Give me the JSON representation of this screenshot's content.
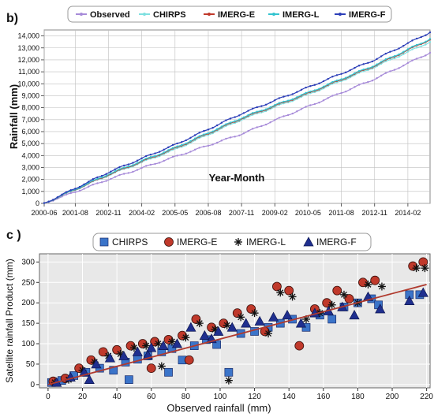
{
  "chart_data": [
    {
      "panel_label": "b)",
      "type": "line",
      "xlabel": "Year-Month",
      "ylabel": "Rainfall (mm)",
      "ylim": [
        0,
        14500
      ],
      "x_tick_labels": [
        "2000-06",
        "2001-08",
        "2002-11",
        "2004-02",
        "2005-05",
        "2006-08",
        "2007-11",
        "2009-02",
        "2010-05",
        "2011-08",
        "2012-11",
        "2014-02"
      ],
      "x_range_months": [
        "2000-06",
        "2014-12"
      ],
      "y_tick_labels": [
        "0",
        "1,000",
        "2,000",
        "3,000",
        "4,000",
        "5,000",
        "6,000",
        "7,000",
        "8,000",
        "9,000",
        "10,000",
        "11,000",
        "12,000",
        "13,000",
        "14,000"
      ],
      "y_ticks": [
        0,
        1000,
        2000,
        3000,
        4000,
        5000,
        6000,
        7000,
        8000,
        9000,
        10000,
        11000,
        12000,
        13000,
        14000
      ],
      "grid": true,
      "legend_position": "top",
      "series": [
        {
          "name": "Observed",
          "color": "#a78bd9",
          "x": [
            "2000-06",
            "2002-11",
            "2005-05",
            "2007-11",
            "2010-05",
            "2012-11",
            "2014-12"
          ],
          "values": [
            0,
            2000,
            3900,
            5800,
            8100,
            10400,
            12600
          ]
        },
        {
          "name": "CHIRPS",
          "color": "#7fe0e0",
          "x": [
            "2000-06",
            "2002-11",
            "2005-05",
            "2007-11",
            "2010-05",
            "2012-11",
            "2014-12"
          ],
          "values": [
            0,
            2350,
            4500,
            7000,
            9100,
            11400,
            13500
          ]
        },
        {
          "name": "IMERG-E",
          "color": "#c0392b",
          "x": [
            "2000-06",
            "2002-11",
            "2005-05",
            "2007-11",
            "2010-05",
            "2012-11",
            "2014-12"
          ],
          "values": [
            0,
            2400,
            4600,
            7100,
            9200,
            11500,
            13700
          ]
        },
        {
          "name": "IMERG-L",
          "color": "#34c4cf",
          "x": [
            "2000-06",
            "2002-11",
            "2005-05",
            "2007-11",
            "2010-05",
            "2012-11",
            "2014-12"
          ],
          "values": [
            0,
            2450,
            4650,
            7150,
            9250,
            11550,
            13750
          ]
        },
        {
          "name": "IMERG-F",
          "color": "#2c3eb8",
          "x": [
            "2000-06",
            "2002-11",
            "2005-05",
            "2007-11",
            "2010-05",
            "2012-11",
            "2014-12"
          ],
          "values": [
            0,
            2600,
            4900,
            7500,
            9700,
            12000,
            14300
          ]
        }
      ]
    },
    {
      "panel_label": "c )",
      "type": "scatter",
      "xlabel": "Observed  rainfall (mm)",
      "ylabel": "Satellite rainfall Product (mm)",
      "xlim": [
        -5,
        222
      ],
      "ylim": [
        -8,
        320
      ],
      "x_ticks": [
        0,
        20,
        40,
        60,
        80,
        100,
        120,
        140,
        160,
        180,
        200,
        220
      ],
      "y_ticks": [
        0,
        50,
        100,
        150,
        200,
        250,
        300
      ],
      "grid": true,
      "legend_position": "top",
      "trendline": {
        "x": [
          0,
          220
        ],
        "y": [
          0,
          245
        ],
        "color": "#b03a2e"
      },
      "series": [
        {
          "name": "CHIRPS",
          "marker": "square",
          "color": "#3b74c9",
          "points": [
            [
              2,
              5
            ],
            [
              8,
              10
            ],
            [
              15,
              22
            ],
            [
              22,
              30
            ],
            [
              30,
              40
            ],
            [
              38,
              35
            ],
            [
              45,
              55
            ],
            [
              52,
              62
            ],
            [
              58,
              70
            ],
            [
              66,
              80
            ],
            [
              72,
              88
            ],
            [
              78,
              60
            ],
            [
              85,
              95
            ],
            [
              92,
              110
            ],
            [
              98,
              98
            ],
            [
              105,
              30
            ],
            [
              112,
              125
            ],
            [
              120,
              130
            ],
            [
              128,
              140
            ],
            [
              135,
              150
            ],
            [
              142,
              160
            ],
            [
              150,
              140
            ],
            [
              158,
              170
            ],
            [
              165,
              160
            ],
            [
              172,
              190
            ],
            [
              180,
              200
            ],
            [
              188,
              210
            ],
            [
              192,
              195
            ],
            [
              210,
              220
            ],
            [
              216,
              220
            ],
            [
              70,
              30
            ],
            [
              47,
              12
            ]
          ]
        },
        {
          "name": "IMERG-E",
          "marker": "circle",
          "color": "#c0392b",
          "points": [
            [
              3,
              8
            ],
            [
              10,
              15
            ],
            [
              18,
              40
            ],
            [
              25,
              60
            ],
            [
              32,
              80
            ],
            [
              40,
              85
            ],
            [
              48,
              95
            ],
            [
              55,
              100
            ],
            [
              62,
              105
            ],
            [
              70,
              110
            ],
            [
              78,
              120
            ],
            [
              86,
              160
            ],
            [
              95,
              140
            ],
            [
              102,
              150
            ],
            [
              110,
              175
            ],
            [
              118,
              185
            ],
            [
              126,
              130
            ],
            [
              133,
              240
            ],
            [
              140,
              230
            ],
            [
              146,
              95
            ],
            [
              155,
              185
            ],
            [
              162,
              200
            ],
            [
              168,
              230
            ],
            [
              175,
              210
            ],
            [
              183,
              250
            ],
            [
              190,
              255
            ],
            [
              212,
              290
            ],
            [
              218,
              300
            ],
            [
              82,
              60
            ],
            [
              60,
              40
            ]
          ]
        },
        {
          "name": "IMERG-L",
          "marker": "asterisk",
          "color": "#111111",
          "points": [
            [
              4,
              5
            ],
            [
              12,
              12
            ],
            [
              20,
              35
            ],
            [
              27,
              55
            ],
            [
              35,
              70
            ],
            [
              42,
              75
            ],
            [
              50,
              90
            ],
            [
              57,
              95
            ],
            [
              64,
              100
            ],
            [
              72,
              105
            ],
            [
              80,
              115
            ],
            [
              88,
              150
            ],
            [
              97,
              135
            ],
            [
              104,
              145
            ],
            [
              112,
              165
            ],
            [
              120,
              175
            ],
            [
              128,
              125
            ],
            [
              135,
              225
            ],
            [
              142,
              215
            ],
            [
              150,
              160
            ],
            [
              158,
              175
            ],
            [
              165,
              195
            ],
            [
              172,
              220
            ],
            [
              180,
              200
            ],
            [
              186,
              245
            ],
            [
              194,
              240
            ],
            [
              214,
              285
            ],
            [
              219,
              285
            ],
            [
              105,
              10
            ],
            [
              66,
              45
            ]
          ]
        },
        {
          "name": "IMERG-F",
          "marker": "triangle",
          "color": "#1f2f8f",
          "points": [
            [
              5,
              5
            ],
            [
              13,
              18
            ],
            [
              21,
              30
            ],
            [
              28,
              50
            ],
            [
              36,
              65
            ],
            [
              44,
              70
            ],
            [
              52,
              80
            ],
            [
              60,
              90
            ],
            [
              67,
              95
            ],
            [
              75,
              100
            ],
            [
              83,
              140
            ],
            [
              91,
              120
            ],
            [
              99,
              130
            ],
            [
              107,
              140
            ],
            [
              115,
              150
            ],
            [
              123,
              155
            ],
            [
              131,
              165
            ],
            [
              139,
              170
            ],
            [
              147,
              150
            ],
            [
              155,
              175
            ],
            [
              163,
              180
            ],
            [
              171,
              190
            ],
            [
              178,
              170
            ],
            [
              186,
              215
            ],
            [
              193,
              185
            ],
            [
              210,
              205
            ],
            [
              218,
              225
            ],
            [
              24,
              12
            ],
            [
              58,
              72
            ],
            [
              95,
              112
            ]
          ]
        }
      ]
    }
  ]
}
